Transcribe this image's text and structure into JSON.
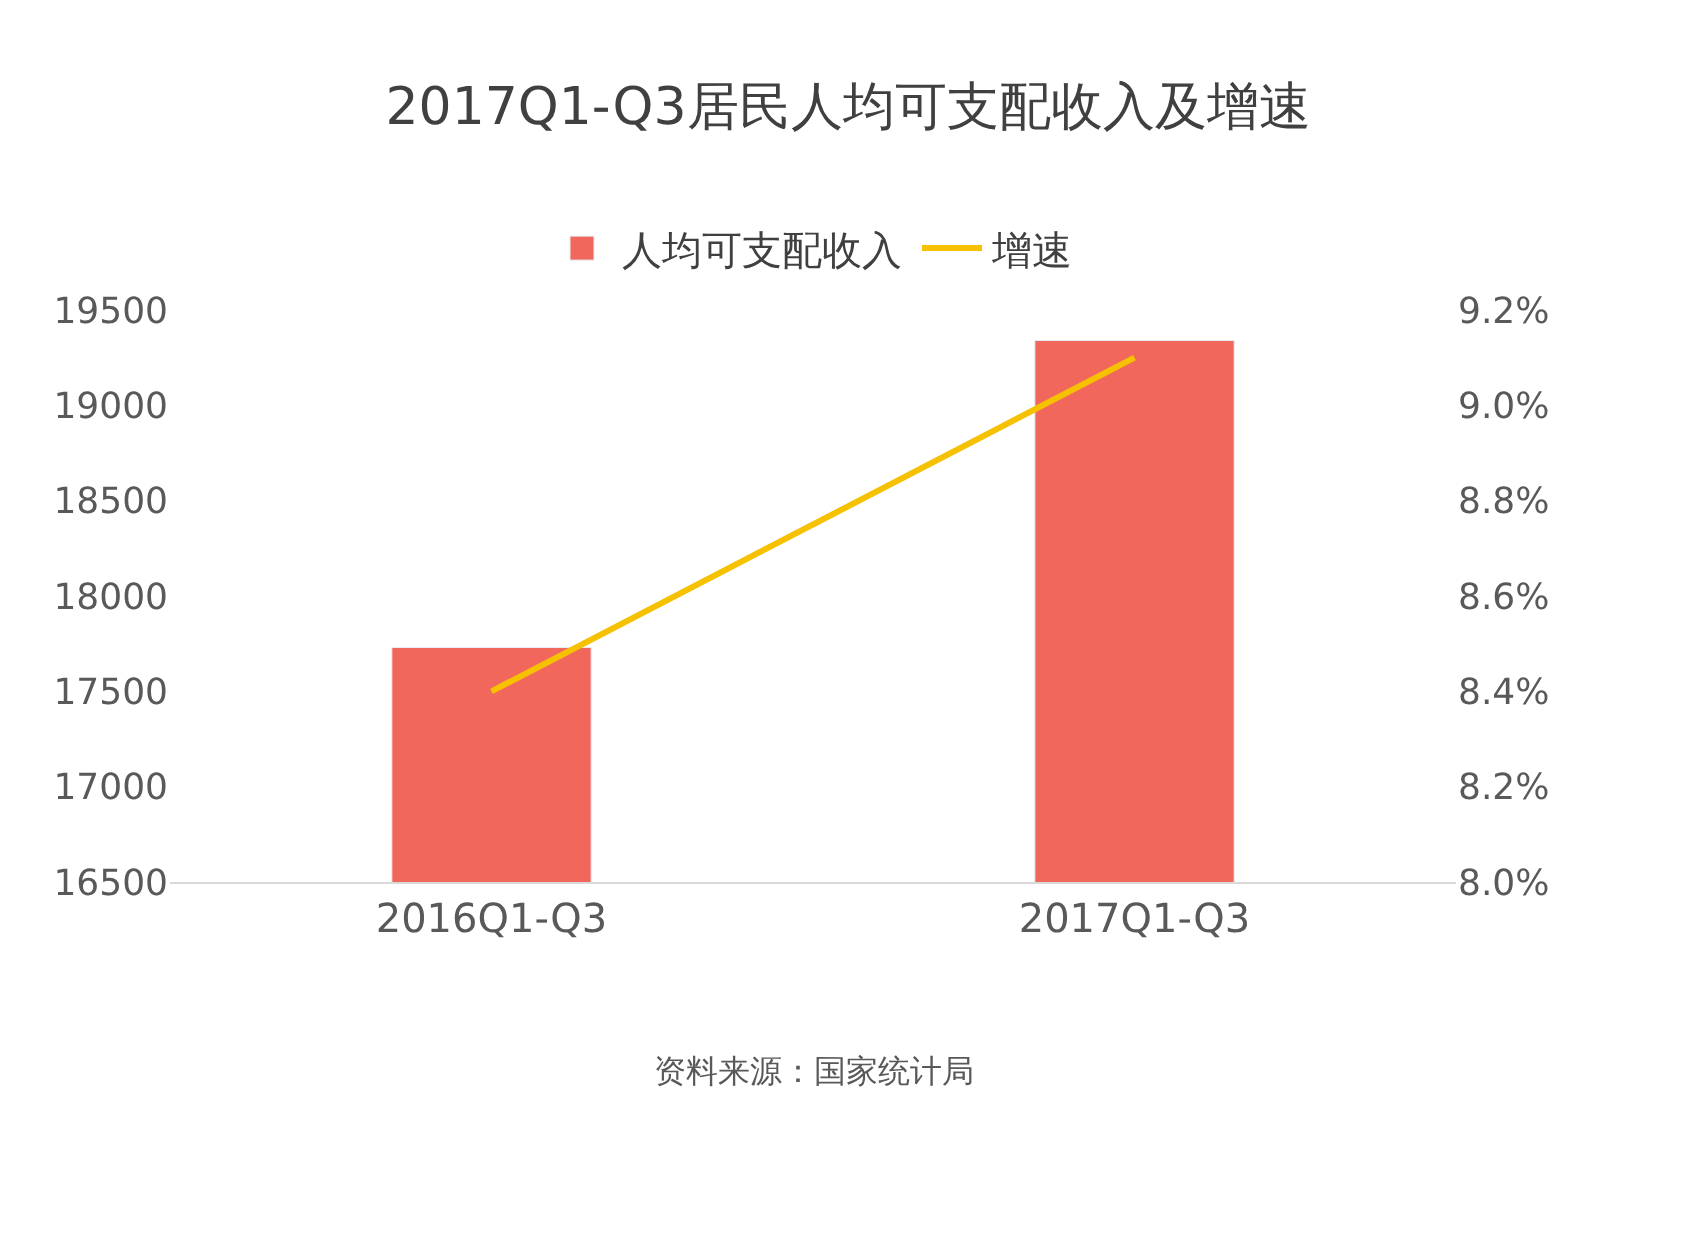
{
  "chart_data": {
    "type": "bar",
    "title": "2017Q1-Q3居民人均可支配收入及增速",
    "categories": [
      "2016Q1-Q3",
      "2017Q1-Q3"
    ],
    "series": [
      {
        "name": "人均可支配收入",
        "color": "#f2675c",
        "values": [
          17730,
          19340
        ]
      },
      {
        "name": "增速",
        "type": "line",
        "axis": "y2",
        "color": "#f5c100",
        "values": [
          8.4,
          9.1
        ]
      }
    ],
    "ylim": [
      16500,
      19500
    ],
    "yticks": [
      16500,
      17000,
      17500,
      18000,
      18500,
      19000,
      19500
    ],
    "y2lim": [
      8.0,
      9.2
    ],
    "y2ticks": [
      {
        "value": 8.0,
        "label": "8.0%"
      },
      {
        "value": 8.2,
        "label": "8.2%"
      },
      {
        "value": 8.4,
        "label": "8.4%"
      },
      {
        "value": 8.6,
        "label": "8.6%"
      },
      {
        "value": 8.8,
        "label": "8.8%"
      },
      {
        "value": 9.0,
        "label": "9.0%"
      },
      {
        "value": 9.2,
        "label": "9.2%"
      }
    ],
    "legend": "top",
    "marker": "none",
    "annotations": [
      "资料来源：国家统计局"
    ]
  }
}
